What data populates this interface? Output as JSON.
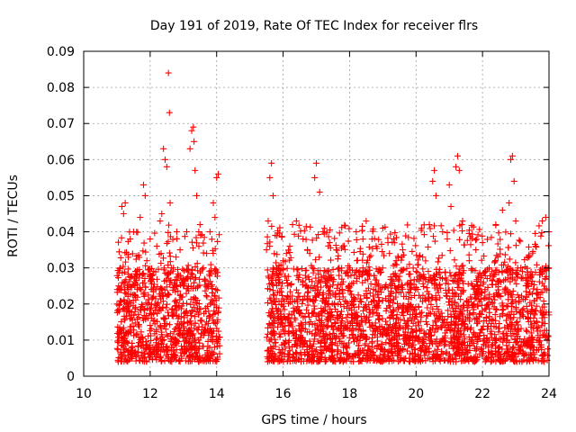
{
  "chart_data": {
    "type": "scatter",
    "title": "Day 191 of 2019, Rate Of TEC Index for receiver flrs",
    "xlabel": "GPS time / hours",
    "ylabel": "ROTI / TECUs",
    "xlim": [
      10,
      24
    ],
    "ylim": [
      0,
      0.09
    ],
    "xticks": [
      10,
      12,
      14,
      16,
      18,
      20,
      22,
      24
    ],
    "yticks": [
      0,
      0.01,
      0.02,
      0.03,
      0.04,
      0.05,
      0.06,
      0.07,
      0.08,
      0.09
    ],
    "ytick_labels": [
      "0",
      "0.01",
      "0.02",
      "0.03",
      "0.04",
      "0.05",
      "0.06",
      "0.07",
      "0.08",
      "0.09"
    ],
    "grid": true,
    "marker": "+",
    "color": "#ff0000",
    "series": [
      {
        "name": "ROTI",
        "points": [
          [
            11.0,
            0.02
          ],
          [
            11.05,
            0.025
          ],
          [
            11.1,
            0.03
          ],
          [
            11.15,
            0.047
          ],
          [
            11.2,
            0.045
          ],
          [
            11.25,
            0.048
          ],
          [
            11.3,
            0.018
          ],
          [
            11.35,
            0.012
          ],
          [
            11.4,
            0.038
          ],
          [
            11.5,
            0.04
          ],
          [
            11.6,
            0.028
          ],
          [
            11.7,
            0.044
          ],
          [
            11.8,
            0.053
          ],
          [
            11.85,
            0.05
          ],
          [
            11.9,
            0.032
          ],
          [
            12.0,
            0.038
          ],
          [
            12.1,
            0.022
          ],
          [
            12.2,
            0.036
          ],
          [
            12.3,
            0.043
          ],
          [
            12.35,
            0.045
          ],
          [
            12.4,
            0.063
          ],
          [
            12.45,
            0.06
          ],
          [
            12.5,
            0.058
          ],
          [
            12.55,
            0.084
          ],
          [
            12.58,
            0.073
          ],
          [
            12.6,
            0.048
          ],
          [
            12.7,
            0.03
          ],
          [
            12.8,
            0.04
          ],
          [
            12.9,
            0.035
          ],
          [
            13.0,
            0.025
          ],
          [
            13.1,
            0.04
          ],
          [
            13.2,
            0.063
          ],
          [
            13.25,
            0.068
          ],
          [
            13.3,
            0.069
          ],
          [
            13.32,
            0.065
          ],
          [
            13.35,
            0.057
          ],
          [
            13.4,
            0.05
          ],
          [
            13.5,
            0.042
          ],
          [
            13.6,
            0.03
          ],
          [
            13.7,
            0.034
          ],
          [
            13.8,
            0.04
          ],
          [
            13.9,
            0.048
          ],
          [
            13.95,
            0.044
          ],
          [
            14.0,
            0.055
          ],
          [
            14.05,
            0.056
          ],
          [
            15.5,
            0.035
          ],
          [
            15.55,
            0.043
          ],
          [
            15.6,
            0.055
          ],
          [
            15.65,
            0.059
          ],
          [
            15.7,
            0.05
          ],
          [
            15.8,
            0.03
          ],
          [
            15.9,
            0.026
          ],
          [
            16.0,
            0.032
          ],
          [
            16.1,
            0.034
          ],
          [
            16.2,
            0.036
          ],
          [
            16.4,
            0.043
          ],
          [
            16.6,
            0.038
          ],
          [
            16.8,
            0.034
          ],
          [
            16.95,
            0.055
          ],
          [
            17.0,
            0.059
          ],
          [
            17.1,
            0.051
          ],
          [
            17.2,
            0.04
          ],
          [
            17.4,
            0.037
          ],
          [
            17.6,
            0.035
          ],
          [
            17.8,
            0.036
          ],
          [
            18.0,
            0.03
          ],
          [
            18.2,
            0.04
          ],
          [
            18.4,
            0.03
          ],
          [
            18.5,
            0.043
          ],
          [
            18.6,
            0.033
          ],
          [
            18.8,
            0.036
          ],
          [
            19.0,
            0.041
          ],
          [
            19.2,
            0.034
          ],
          [
            19.4,
            0.032
          ],
          [
            19.6,
            0.035
          ],
          [
            19.8,
            0.031
          ],
          [
            20.0,
            0.029
          ],
          [
            20.2,
            0.033
          ],
          [
            20.4,
            0.042
          ],
          [
            20.5,
            0.054
          ],
          [
            20.55,
            0.057
          ],
          [
            20.6,
            0.05
          ],
          [
            20.8,
            0.04
          ],
          [
            21.0,
            0.053
          ],
          [
            21.05,
            0.047
          ],
          [
            21.2,
            0.058
          ],
          [
            21.25,
            0.061
          ],
          [
            21.3,
            0.057
          ],
          [
            21.4,
            0.043
          ],
          [
            21.6,
            0.032
          ],
          [
            21.8,
            0.035
          ],
          [
            22.0,
            0.037
          ],
          [
            22.2,
            0.03
          ],
          [
            22.4,
            0.042
          ],
          [
            22.6,
            0.046
          ],
          [
            22.8,
            0.048
          ],
          [
            22.85,
            0.06
          ],
          [
            22.9,
            0.061
          ],
          [
            22.95,
            0.054
          ],
          [
            23.0,
            0.043
          ],
          [
            23.2,
            0.029
          ],
          [
            23.4,
            0.033
          ],
          [
            23.6,
            0.036
          ],
          [
            23.8,
            0.043
          ],
          [
            23.9,
            0.044
          ],
          [
            24.0,
            0.04
          ]
        ],
        "bulk_band": {
          "segments": [
            [
              11.0,
              14.1
            ],
            [
              15.5,
              24.0
            ]
          ],
          "typical_range": [
            0.004,
            0.03
          ],
          "density_per_hour": 300
        }
      }
    ]
  }
}
